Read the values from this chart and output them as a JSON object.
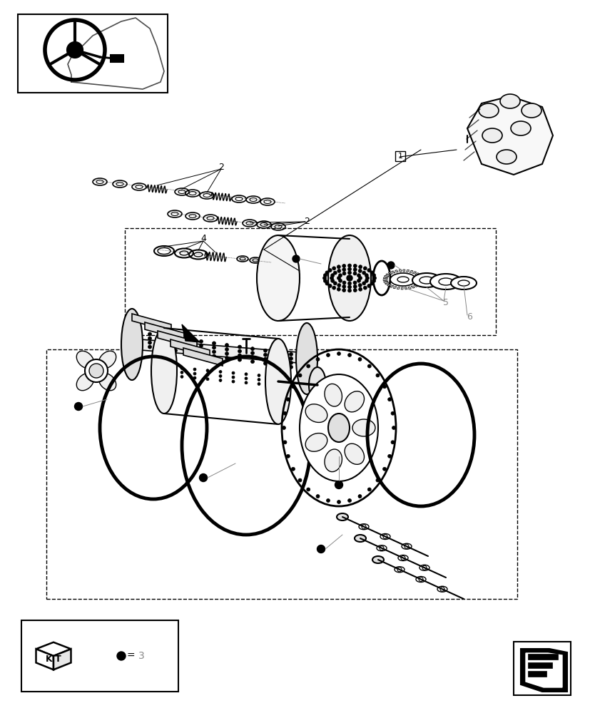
{
  "bg": "#ffffff",
  "lc": "#000000",
  "gc": "#888888",
  "lgc": "#aaaaaa",
  "fig_w": 8.28,
  "fig_h": 10.0,
  "dpi": 100
}
